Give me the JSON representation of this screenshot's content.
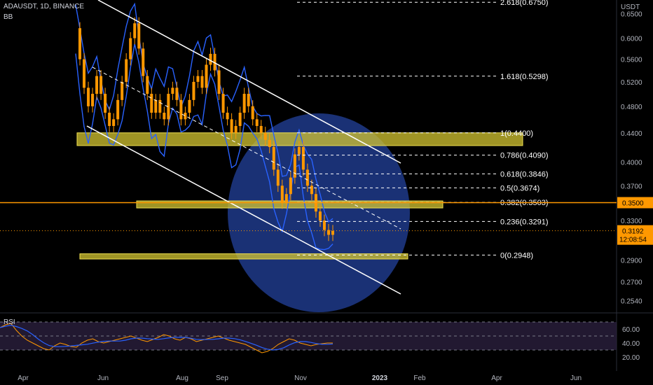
{
  "header": {
    "symbol_line": "ADAUSDT, 1D, BINANCE",
    "indicator": "BB",
    "rsi_label": "RSI"
  },
  "chart_data": {
    "type": "candlestick",
    "symbol": "ADAUSDT",
    "interval": "1D",
    "exchange": "BINANCE",
    "currency_label": "USDT",
    "y_scale": "log",
    "ylim": [
      0.245,
      0.68
    ],
    "y_ticks": [
      "0.6500",
      "0.6000",
      "0.5600",
      "0.5200",
      "0.4800",
      "0.4400",
      "0.4000",
      "0.3700",
      "0.3300",
      "0.2900",
      "0.2700",
      "0.2540"
    ],
    "x_ticks": [
      "Apr",
      "Jun",
      "Aug",
      "Sep",
      "Nov",
      "2023",
      "Feb",
      "Apr",
      "Jun"
    ],
    "price_close": [
      0.62,
      0.56,
      0.51,
      0.48,
      0.5,
      0.53,
      0.5,
      0.47,
      0.45,
      0.46,
      0.49,
      0.52,
      0.56,
      0.6,
      0.63,
      0.58,
      0.53,
      0.5,
      0.47,
      0.49,
      0.47,
      0.46,
      0.5,
      0.51,
      0.49,
      0.46,
      0.47,
      0.49,
      0.52,
      0.53,
      0.51,
      0.55,
      0.57,
      0.54,
      0.5,
      0.47,
      0.46,
      0.44,
      0.45,
      0.47,
      0.5,
      0.48,
      0.46,
      0.45,
      0.44,
      0.43,
      0.42,
      0.39,
      0.37,
      0.35,
      0.36,
      0.38,
      0.41,
      0.42,
      0.39,
      0.37,
      0.36,
      0.34,
      0.33,
      0.32,
      0.315,
      0.319
    ],
    "fib_levels": [
      {
        "label": "2.618(0.6750)",
        "value": 0.675
      },
      {
        "label": "1.618(0.5298)",
        "value": 0.5298
      },
      {
        "label": "1(0.4400)",
        "value": 0.44
      },
      {
        "label": "0.786(0.4090)",
        "value": 0.409
      },
      {
        "label": "0.618(0.3846)",
        "value": 0.3846
      },
      {
        "label": "0.5(0.3674)",
        "value": 0.3674
      },
      {
        "label": "0.382(0.3503)",
        "value": 0.3503
      },
      {
        "label": "0.236(0.3291)",
        "value": 0.3291
      },
      {
        "label": "0(0.2948)",
        "value": 0.2948
      }
    ],
    "zones": [
      {
        "top": 0.44,
        "bottom": 0.422
      },
      {
        "top": 0.352,
        "bottom": 0.344
      },
      {
        "top": 0.296,
        "bottom": 0.291
      }
    ],
    "horizontal_level": {
      "label": "0.3500",
      "value": 0.35,
      "color": "#ff9800"
    },
    "last_price": {
      "label": "0.3192",
      "countdown": "12:08:54",
      "value": 0.3192,
      "color": "#ff9800"
    },
    "rsi": {
      "y_ticks": [
        "60.00",
        "40.00",
        "20.00"
      ],
      "upper": 70,
      "mid": 50,
      "lower": 30,
      "values": [
        62,
        66,
        68,
        58,
        50,
        44,
        40,
        36,
        32,
        30,
        36,
        40,
        38,
        35,
        34,
        40,
        44,
        46,
        42,
        40,
        42,
        44,
        46,
        48,
        50,
        47,
        44,
        42,
        45,
        48,
        52,
        50,
        46,
        44,
        48,
        46,
        42,
        44,
        46,
        48,
        50,
        47,
        44,
        42,
        40,
        38,
        34,
        30,
        26,
        28,
        32,
        38,
        42,
        46,
        44,
        40,
        38,
        36,
        38,
        39,
        40,
        40
      ]
    },
    "colors": {
      "candles": "#ff9800",
      "bollinger": "#2962ff",
      "channel": "#ffffff",
      "circle": "#1e3a8a",
      "zone_fill": "#d4c532",
      "rsi_line": "#2962ff",
      "rsi_band": "#2a1f3d"
    }
  }
}
